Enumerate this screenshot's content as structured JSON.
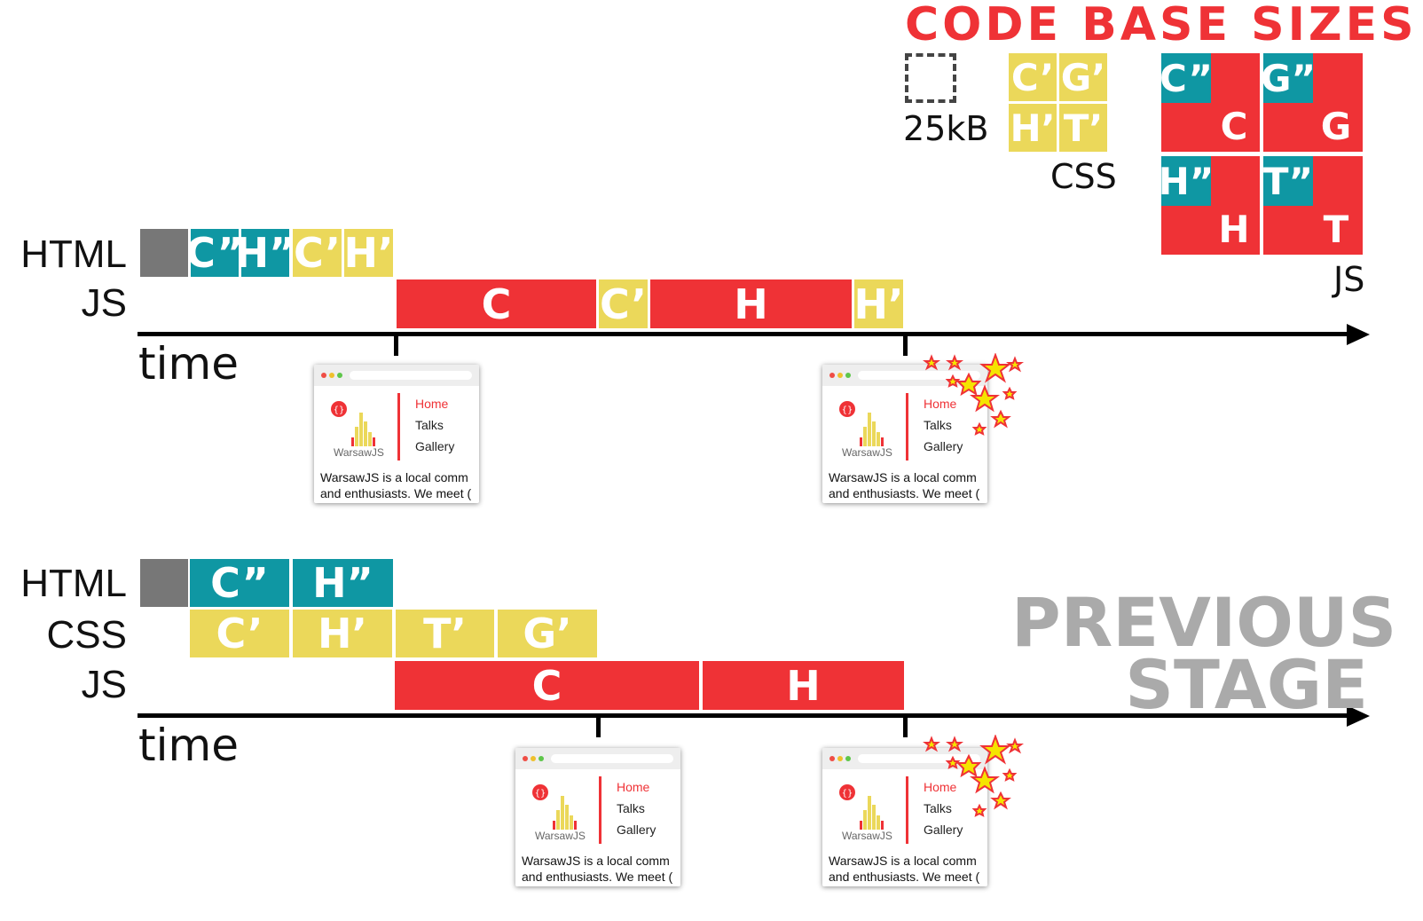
{
  "legend": {
    "title": "CODE BASE SIZES",
    "unit_caption": "25kB",
    "css_caption": "CSS",
    "js_caption": "JS",
    "css_tiles": [
      "C’",
      "G’",
      "H’",
      "T’"
    ],
    "js_tiles": [
      {
        "small": "C”",
        "big": "C"
      },
      {
        "small": "G”",
        "big": "G"
      },
      {
        "small": "H”",
        "big": "H"
      },
      {
        "small": "T”",
        "big": "T"
      }
    ]
  },
  "colors": {
    "gray": "#777777",
    "teal": "#0f97a3",
    "yellow": "#ebd85a",
    "red": "#ef3236",
    "muted": "#aaaaaa"
  },
  "top_timeline": {
    "labels": {
      "html": "HTML",
      "js": "JS"
    },
    "time_label": "time",
    "html_blocks": [
      "",
      "C”",
      "H”",
      "C’",
      "H’"
    ],
    "js_blocks": [
      "C",
      "C’",
      "H",
      "H’"
    ]
  },
  "bottom_timeline": {
    "labels": {
      "html": "HTML",
      "css": "CSS",
      "js": "JS"
    },
    "time_label": "time",
    "html_blocks": [
      "",
      "C”",
      "H”"
    ],
    "css_blocks": [
      "C’",
      "H’",
      "T’",
      "G’"
    ],
    "js_blocks": [
      "C",
      "H"
    ],
    "stage_line1": "PREVIOUS",
    "stage_line2": "STAGE"
  },
  "thumbnail": {
    "brand": "WarsawJS",
    "nav": [
      "Home",
      "Talks",
      "Gallery"
    ],
    "desc_line1": "WarsawJS is a local comm",
    "desc_line2": "and enthusiasts. We meet ("
  }
}
